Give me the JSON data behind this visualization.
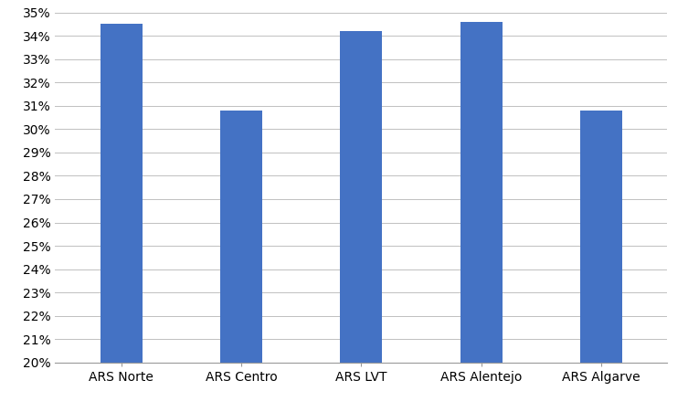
{
  "categories": [
    "ARS Norte",
    "ARS Centro",
    "ARS LVT",
    "ARS Alentejo",
    "ARS Algarve"
  ],
  "values": [
    0.345,
    0.308,
    0.342,
    0.346,
    0.308
  ],
  "bar_color": "#4472C4",
  "ylim": [
    0.2,
    0.35
  ],
  "yticks": [
    0.2,
    0.21,
    0.22,
    0.23,
    0.24,
    0.25,
    0.26,
    0.27,
    0.28,
    0.29,
    0.3,
    0.31,
    0.32,
    0.33,
    0.34,
    0.35
  ],
  "background_color": "#FFFFFF",
  "grid_color": "#C0C0C0",
  "tick_fontsize": 10,
  "xlabel_fontsize": 10,
  "bar_width": 0.35
}
